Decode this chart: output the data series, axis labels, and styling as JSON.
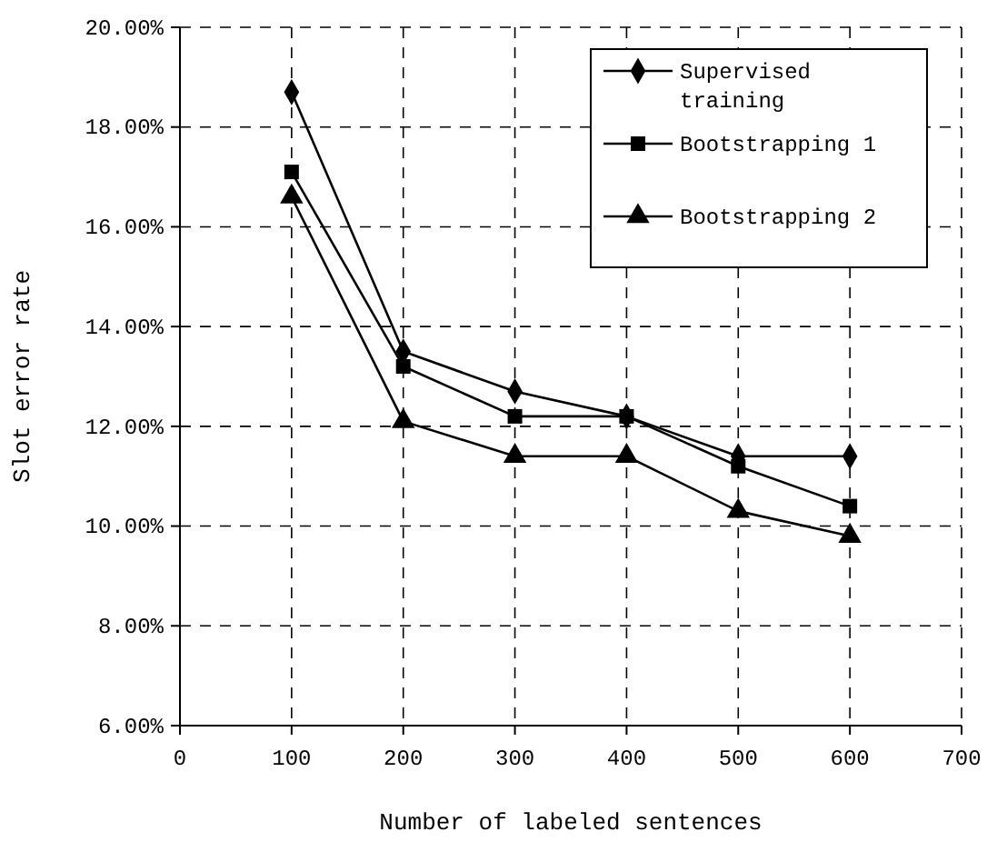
{
  "chart_data": {
    "type": "line",
    "xlabel": "Number of labeled sentences",
    "ylabel": "Slot error rate",
    "x": [
      100,
      200,
      300,
      400,
      500,
      600
    ],
    "series": [
      {
        "name": "Supervised training",
        "color": "#000000",
        "marker": "diamond",
        "values": [
          18.7,
          13.5,
          12.7,
          12.2,
          11.4,
          11.4
        ]
      },
      {
        "name": "Bootstrapping 1",
        "color": "#000000",
        "marker": "square",
        "values": [
          17.1,
          13.2,
          12.2,
          12.2,
          11.2,
          10.4
        ]
      },
      {
        "name": "Bootstrapping 2",
        "color": "#000000",
        "marker": "triangle",
        "values": [
          16.6,
          12.1,
          11.4,
          11.4,
          10.3,
          9.8
        ]
      }
    ],
    "xlim": [
      0,
      700
    ],
    "xticks": [
      0,
      100,
      200,
      300,
      400,
      500,
      600,
      700
    ],
    "ylim": [
      6,
      20
    ],
    "yticks": [
      {
        "value": 6,
        "label": "6.00%"
      },
      {
        "value": 8,
        "label": "8.00%"
      },
      {
        "value": 10,
        "label": "10.00%"
      },
      {
        "value": 12,
        "label": "12.00%"
      },
      {
        "value": 14,
        "label": "14.00%"
      },
      {
        "value": 16,
        "label": "16.00%"
      },
      {
        "value": 18,
        "label": "18.00%"
      },
      {
        "value": 20,
        "label": "20.00%"
      }
    ],
    "grid": true,
    "legend": "top right",
    "line_style": "solid"
  }
}
